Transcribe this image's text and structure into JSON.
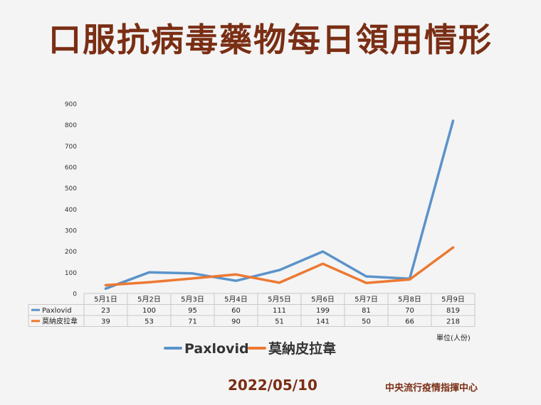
{
  "header": {
    "title": "口服抗病毒藥物每日領用情形"
  },
  "footer": {
    "date": "2022/05/10",
    "org": "中央流行疫情指揮中心"
  },
  "unit_note": "單位(人份)",
  "colors": {
    "paxlovid": "#5b93c9",
    "molnupiravir": "#ec7932",
    "title": "#7a2e14",
    "grid": "#c9c9c9"
  },
  "chart_data": {
    "type": "line",
    "categories": [
      "5月1日",
      "5月2日",
      "5月3日",
      "5月4日",
      "5月5日",
      "5月6日",
      "5月7日",
      "5月8日",
      "5月9日"
    ],
    "series": [
      {
        "name": "Paxlovid",
        "values": [
          23,
          100,
          95,
          60,
          111,
          199,
          81,
          70,
          819
        ]
      },
      {
        "name": "莫納皮拉韋",
        "values": [
          39,
          53,
          71,
          90,
          51,
          141,
          50,
          66,
          218
        ]
      }
    ],
    "yticks": [
      0,
      100,
      200,
      300,
      400,
      500,
      600,
      700,
      800,
      900
    ],
    "ylim": [
      0,
      900
    ],
    "grid": false,
    "legend": "bottom"
  }
}
